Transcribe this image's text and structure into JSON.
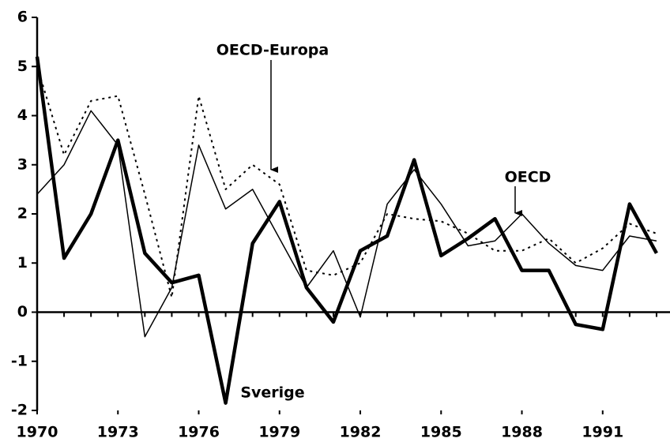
{
  "chart_data": {
    "type": "line",
    "x": [
      1970,
      1971,
      1972,
      1973,
      1974,
      1975,
      1976,
      1977,
      1978,
      1979,
      1980,
      1981,
      1982,
      1983,
      1984,
      1985,
      1986,
      1987,
      1988,
      1989,
      1990,
      1991,
      1992,
      1993
    ],
    "series": [
      {
        "name": "Sverige",
        "color": "#000000",
        "line_width": 4.5,
        "dash": false,
        "values": [
          5.2,
          1.1,
          2.0,
          3.5,
          1.2,
          0.6,
          0.75,
          -1.85,
          1.4,
          2.25,
          0.5,
          -0.2,
          1.25,
          1.55,
          3.1,
          1.15,
          1.5,
          1.9,
          0.85,
          0.85,
          -0.25,
          -0.35,
          2.2,
          1.2
        ]
      },
      {
        "name": "OECD",
        "color": "#000000",
        "line_width": 1.5,
        "dash": false,
        "values": [
          2.4,
          3.0,
          4.1,
          3.4,
          -0.5,
          0.5,
          3.4,
          2.1,
          2.5,
          1.5,
          0.5,
          1.25,
          -0.1,
          2.2,
          2.9,
          2.2,
          1.35,
          1.45,
          2.0,
          1.4,
          0.95,
          0.85,
          1.55,
          1.45
        ]
      },
      {
        "name": "OECD-Europa",
        "color": "#000000",
        "line_width": 2,
        "dash": true,
        "values": [
          5.0,
          3.2,
          4.3,
          4.4,
          2.4,
          0.3,
          4.4,
          2.5,
          3.0,
          2.6,
          0.85,
          0.75,
          1.0,
          2.0,
          1.9,
          1.85,
          1.6,
          1.25,
          1.25,
          1.5,
          1.0,
          1.3,
          1.8,
          1.6
        ]
      }
    ],
    "xlim": [
      1970,
      1993.5
    ],
    "xticks": [
      1970,
      1973,
      1976,
      1979,
      1982,
      1985,
      1988,
      1991
    ],
    "ylim": [
      -2,
      6
    ],
    "yticks": [
      -2,
      -1,
      0,
      1,
      2,
      3,
      4,
      5,
      6
    ]
  }
}
